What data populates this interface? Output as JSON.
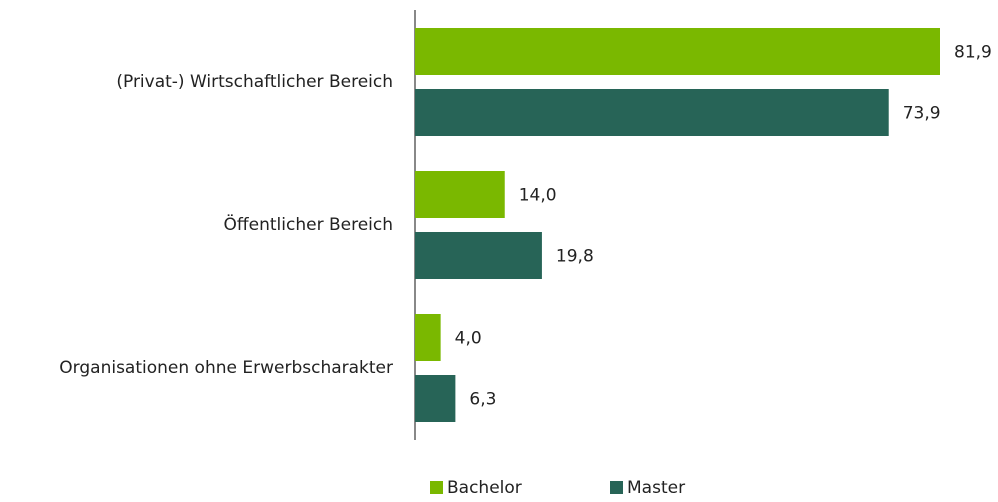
{
  "chart_data": {
    "type": "hbar",
    "categories": [
      "(Privat-) Wirtschaftlicher Bereich",
      "Öffentlicher Bereich",
      "Organisationen ohne Erwerbscharakter"
    ],
    "series": [
      {
        "name": "Bachelor",
        "color": "#7ab800",
        "values": [
          81.9,
          14.0,
          4.0
        ],
        "value_labels": [
          "81,9",
          "14,0",
          "4,0"
        ]
      },
      {
        "name": "Master",
        "color": "#276457",
        "values": [
          73.9,
          19.8,
          6.3
        ],
        "value_labels": [
          "73,9",
          "19,8",
          "6,3"
        ]
      }
    ],
    "legend": "bottom"
  }
}
